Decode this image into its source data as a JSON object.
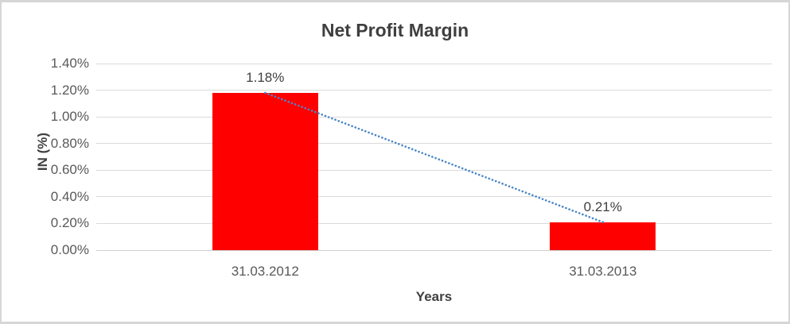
{
  "chart_data": {
    "type": "bar",
    "title": "Net Profit Margin",
    "xlabel": "Years",
    "ylabel": "IN (%)",
    "categories": [
      "31.03.2012",
      "31.03.2013"
    ],
    "values": [
      1.18,
      0.21
    ],
    "data_labels": [
      "1.18%",
      "0.21%"
    ],
    "y_ticks": [
      "1.40%",
      "1.20%",
      "1.00%",
      "0.80%",
      "0.60%",
      "0.40%",
      "0.20%",
      "0.00%"
    ],
    "ylim": [
      0,
      1.4
    ],
    "grid": true,
    "legend": "none",
    "bar_color": "#ff0000",
    "gridline_color": "#dadada",
    "axis_line_color": "#cfcfcf",
    "trendline": {
      "type": "linear",
      "style": "dotted",
      "color": "#4a86c8",
      "from": 1.18,
      "to": 0.21
    }
  }
}
